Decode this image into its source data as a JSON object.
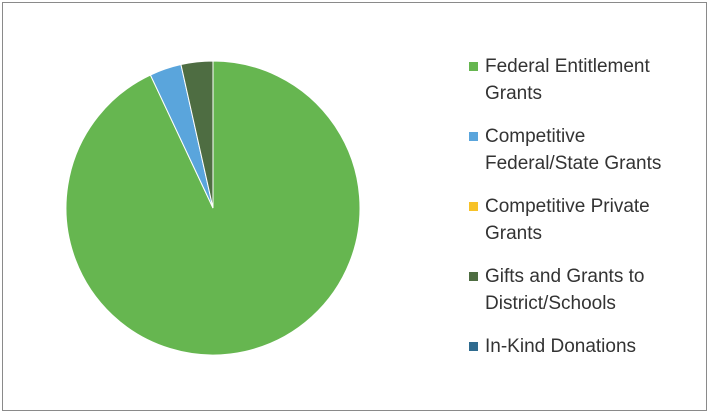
{
  "chart_data": {
    "type": "pie",
    "title": "",
    "legend_position": "right",
    "series": [
      {
        "values": [
          {
            "category": "Federal Entitlement\nGrants",
            "value": 93.0,
            "color": "#66b650"
          },
          {
            "category": "Competitive\nFederal/State Grants",
            "value": 3.5,
            "color": "#5aa5dc"
          },
          {
            "category": "Competitive Private\nGrants",
            "value": 0.0,
            "color": "#f7c228"
          },
          {
            "category": "Gifts and Grants to\nDistrict/Schools",
            "value": 3.5,
            "color": "#4e6d42"
          },
          {
            "category": "In-Kind Donations",
            "value": 0.0,
            "color": "#2f6b8f"
          }
        ]
      }
    ]
  }
}
